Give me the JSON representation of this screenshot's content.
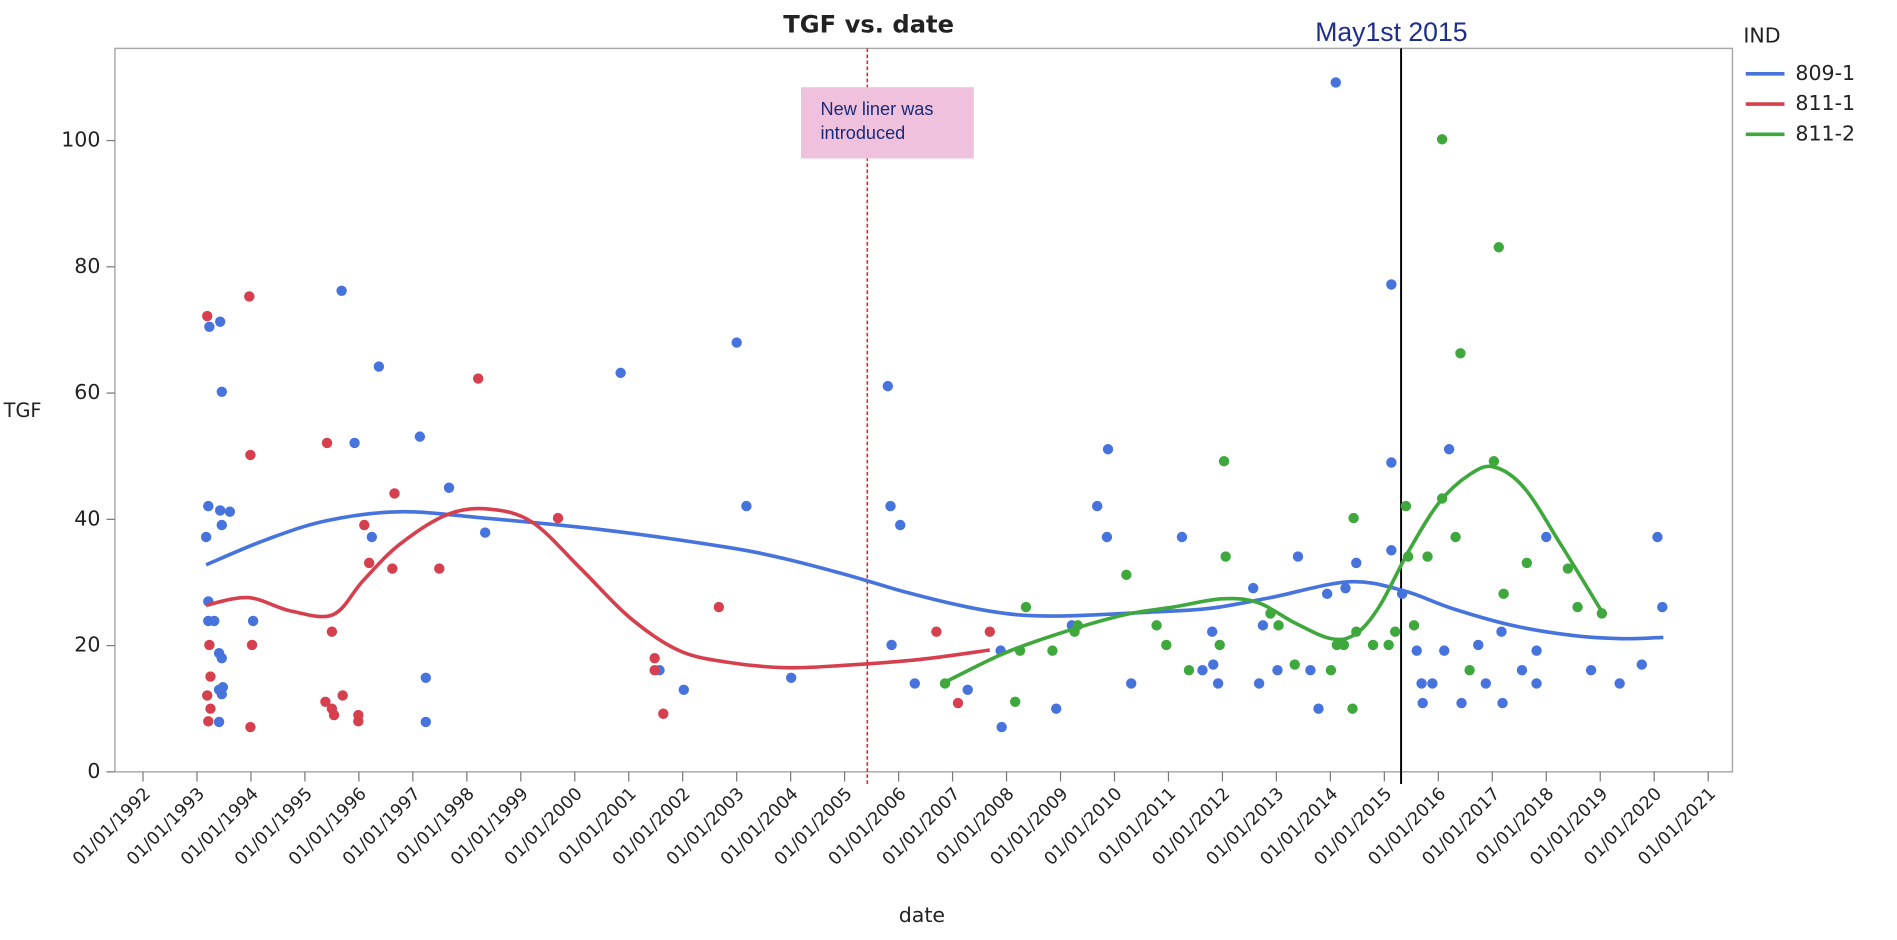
{
  "chart_data": {
    "type": "scatter",
    "title": "TGF vs. date",
    "x_label": "date",
    "y_label": "TGF",
    "legend_title": "IND",
    "legend": "right",
    "grid": false,
    "xlim": [
      1991.48,
      2021.45
    ],
    "ylim": [
      0,
      114.6
    ],
    "yticks": [
      0,
      20,
      40,
      60,
      80,
      100
    ],
    "xticks": [
      {
        "value": 1992,
        "label": "01/01/1992"
      },
      {
        "value": 1993,
        "label": "01/01/1993"
      },
      {
        "value": 1994,
        "label": "01/01/1994"
      },
      {
        "value": 1995,
        "label": "01/01/1995"
      },
      {
        "value": 1996,
        "label": "01/01/1996"
      },
      {
        "value": 1997,
        "label": "01/01/1997"
      },
      {
        "value": 1998,
        "label": "01/01/1998"
      },
      {
        "value": 1999,
        "label": "01/01/1999"
      },
      {
        "value": 2000,
        "label": "01/01/2000"
      },
      {
        "value": 2001,
        "label": "01/01/2001"
      },
      {
        "value": 2002,
        "label": "01/01/2002"
      },
      {
        "value": 2003,
        "label": "01/01/2003"
      },
      {
        "value": 2004,
        "label": "01/01/2004"
      },
      {
        "value": 2005,
        "label": "01/01/2005"
      },
      {
        "value": 2006,
        "label": "01/01/2006"
      },
      {
        "value": 2007,
        "label": "01/01/2007"
      },
      {
        "value": 2008,
        "label": "01/01/2008"
      },
      {
        "value": 2009,
        "label": "01/01/2009"
      },
      {
        "value": 2010,
        "label": "01/01/2010"
      },
      {
        "value": 2011,
        "label": "01/01/2011"
      },
      {
        "value": 2012,
        "label": "01/01/2012"
      },
      {
        "value": 2013,
        "label": "01/01/2013"
      },
      {
        "value": 2014,
        "label": "01/01/2014"
      },
      {
        "value": 2015,
        "label": "01/01/2015"
      },
      {
        "value": 2016,
        "label": "01/01/2016"
      },
      {
        "value": 2017,
        "label": "01/01/2017"
      },
      {
        "value": 2018,
        "label": "01/01/2018"
      },
      {
        "value": 2019,
        "label": "01/01/2019"
      },
      {
        "value": 2020,
        "label": "01/01/2020"
      },
      {
        "value": 2021,
        "label": "01/01/2021"
      }
    ],
    "reference_lines": [
      {
        "x": 2005.42,
        "color": "#e8202a",
        "style": "dotted"
      },
      {
        "x": 2015.31,
        "color": "#000000",
        "style": "solid",
        "label": "May1st 2015"
      }
    ],
    "annotation": {
      "text": "New liner was introduced",
      "x": 2004.8,
      "y": 100
    },
    "series": [
      {
        "name": "809-1",
        "color": "#4673dc",
        "x": [
          1993.17,
          1993.23,
          1993.21,
          1993.21,
          1993.21,
          1993.32,
          1993.43,
          1993.46,
          1993.43,
          1993.46,
          1993.61,
          1993.41,
          1993.46,
          1993.41,
          1993.46,
          1993.48,
          1993.41,
          1994.04,
          1995.68,
          1995.92,
          1996.24,
          1996.37,
          1997.13,
          1997.24,
          1997.24,
          1997.67,
          1998.34,
          2000.85,
          2001.57,
          2002.02,
          2003.0,
          2003.18,
          2004.01,
          2005.8,
          2005.85,
          2006.03,
          2005.87,
          2006.3,
          2007.28,
          2007.89,
          2007.91,
          2008.92,
          2009.21,
          2009.68,
          2009.88,
          2009.86,
          2010.31,
          2011.25,
          2011.63,
          2011.81,
          2011.83,
          2011.92,
          2012.57,
          2012.68,
          2012.75,
          2013.02,
          2013.4,
          2013.63,
          2013.78,
          2013.94,
          2014.1,
          2014.28,
          2014.48,
          2015.13,
          2015.13,
          2015.13,
          2015.33,
          2015.6,
          2015.69,
          2015.71,
          2015.89,
          2016.11,
          2016.2,
          2016.43,
          2016.74,
          2016.88,
          2017.17,
          2017.19,
          2017.55,
          2017.82,
          2017.82,
          2018.0,
          2018.83,
          2019.36,
          2019.77,
          2020.06,
          2020.15
        ],
        "values": [
          37.2,
          70.5,
          42.1,
          27.0,
          23.9,
          23.9,
          71.3,
          60.2,
          41.4,
          39.1,
          41.2,
          18.8,
          18.0,
          13.0,
          12.3,
          13.4,
          7.9,
          23.9,
          76.2,
          52.1,
          37.2,
          64.2,
          53.1,
          14.9,
          7.9,
          45.0,
          37.9,
          63.2,
          16.1,
          13.0,
          68.0,
          42.1,
          14.9,
          61.1,
          42.1,
          39.1,
          20.1,
          14.0,
          13.0,
          19.2,
          7.1,
          10.0,
          23.2,
          42.1,
          51.1,
          37.2,
          14.0,
          37.2,
          16.1,
          22.2,
          17.0,
          14.0,
          29.1,
          14.0,
          23.2,
          16.1,
          34.1,
          16.1,
          10.0,
          28.2,
          109.2,
          29.1,
          33.1,
          49.0,
          77.2,
          35.1,
          28.2,
          19.2,
          14.0,
          10.9,
          14.0,
          19.2,
          51.1,
          10.9,
          20.1,
          14.0,
          22.2,
          10.9,
          16.1,
          14.0,
          19.2,
          37.2,
          16.1,
          14.0,
          17.0,
          37.2,
          26.1
        ],
        "fit_x": [
          1993.17,
          1994.29,
          1995.41,
          1996.75,
          1998.32,
          2000.56,
          2002.8,
          2003.92,
          2005.04,
          2006.16,
          2007.28,
          2008.18,
          2009.08,
          2010.65,
          2011.77,
          2012.89,
          2014.34,
          2015.35,
          2016.25,
          2017.37,
          2018.49,
          2019.39,
          2020.17
        ],
        "fit_y": [
          32.8,
          36.8,
          39.8,
          41.2,
          40.2,
          38.3,
          35.6,
          33.7,
          31.2,
          28.4,
          26.1,
          24.9,
          24.7,
          25.3,
          25.9,
          27.6,
          30.1,
          28.7,
          25.9,
          23.2,
          21.6,
          21.1,
          21.3
        ]
      },
      {
        "name": "811-1",
        "color": "#d6404e",
        "x": [
          1993.19,
          1993.19,
          1993.21,
          1993.23,
          1993.25,
          1993.25,
          1993.97,
          1993.99,
          1994.02,
          1993.99,
          1995.41,
          1995.5,
          1995.38,
          1995.5,
          1995.54,
          1995.7,
          1995.99,
          1995.99,
          1996.1,
          1996.19,
          1996.62,
          1996.66,
          1997.49,
          1998.21,
          1999.69,
          2001.48,
          2001.48,
          2001.64,
          2002.67,
          2006.7,
          2007.1,
          2007.69
        ],
        "values": [
          72.2,
          12.1,
          8.0,
          20.1,
          15.1,
          10.0,
          75.3,
          50.2,
          20.1,
          7.1,
          52.1,
          22.2,
          11.1,
          10.0,
          9.0,
          12.1,
          9.0,
          8.0,
          39.1,
          33.1,
          32.2,
          44.1,
          32.2,
          62.3,
          40.2,
          18.0,
          16.1,
          9.2,
          26.1,
          22.2,
          10.9,
          22.2
        ],
        "fit_x": [
          1993.17,
          1993.95,
          1994.73,
          1995.52,
          1996.08,
          1996.75,
          1997.65,
          1998.43,
          1999.22,
          2000.11,
          2001.01,
          2001.91,
          2002.8,
          2003.92,
          2005.04,
          2006.39,
          2007.69
        ],
        "fit_y": [
          26.4,
          27.6,
          25.5,
          24.9,
          30.3,
          36.0,
          40.8,
          41.6,
          39.5,
          32.2,
          24.5,
          19.3,
          17.4,
          16.5,
          16.9,
          17.8,
          19.3
        ]
      },
      {
        "name": "811-2",
        "color": "#3ea83c",
        "x": [
          2006.86,
          2008.16,
          2008.25,
          2008.36,
          2008.85,
          2009.26,
          2009.32,
          2010.22,
          2010.78,
          2010.96,
          2011.38,
          2011.95,
          2012.03,
          2012.06,
          2012.89,
          2013.04,
          2013.34,
          2014.01,
          2014.12,
          2014.25,
          2014.41,
          2014.43,
          2014.48,
          2014.79,
          2015.08,
          2015.2,
          2015.4,
          2015.44,
          2015.55,
          2015.8,
          2016.07,
          2016.07,
          2016.32,
          2016.41,
          2016.58,
          2017.03,
          2017.12,
          2017.21,
          2017.64,
          2018.4,
          2018.58,
          2019.03
        ],
        "values": [
          14.0,
          11.1,
          19.2,
          26.1,
          19.2,
          22.2,
          23.2,
          31.2,
          23.2,
          20.1,
          16.1,
          20.1,
          49.2,
          34.1,
          25.1,
          23.2,
          17.0,
          16.1,
          20.1,
          20.1,
          10.0,
          40.2,
          22.2,
          20.1,
          20.1,
          22.2,
          42.1,
          34.1,
          23.2,
          34.1,
          100.2,
          43.3,
          37.2,
          66.3,
          16.1,
          49.2,
          83.1,
          28.2,
          33.1,
          32.2,
          26.1,
          25.1
        ],
        "fit_x": [
          2006.86,
          2007.96,
          2009.08,
          2010.2,
          2011.09,
          2011.99,
          2012.66,
          2013.34,
          2014.01,
          2014.46,
          2014.9,
          2015.46,
          2016.02,
          2016.58,
          2017.03,
          2017.59,
          2018.27,
          2019.05
        ],
        "fit_y": [
          14.2,
          18.8,
          22.2,
          24.9,
          26.1,
          27.4,
          26.8,
          23.6,
          21.1,
          21.8,
          26.1,
          35.1,
          42.7,
          47.1,
          48.3,
          45.0,
          36.0,
          25.1
        ]
      }
    ]
  }
}
